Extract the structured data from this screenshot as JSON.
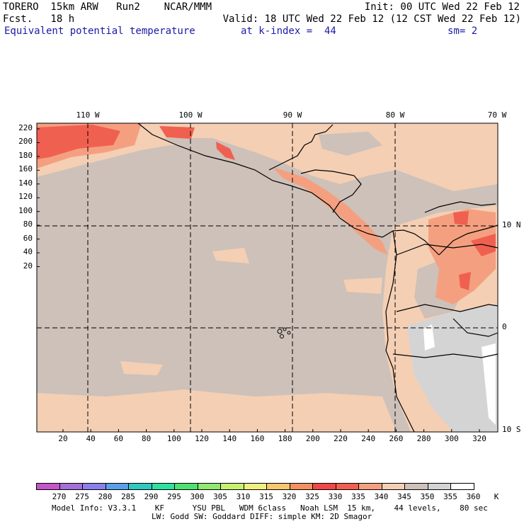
{
  "header": {
    "model_line": "TORERO  15km ARW   Run2    NCAR/MMM",
    "init": "Init: 00 UTC Wed 22 Feb 12",
    "fcst": "Fcst.   18 h",
    "valid": "Valid: 18 UTC Wed 22 Feb 12 (12 CST Wed 22 Feb 12)",
    "field": "Equivalent potential temperature",
    "kindex": "at k-index =  44",
    "smoothing": "sm= 2"
  },
  "map": {
    "top_lon_labels": [
      "110 W",
      "100 W",
      "90 W",
      "80 W",
      "70 W"
    ],
    "right_lat_labels": [
      "10 N",
      "0",
      "10 S"
    ],
    "left_grid_labels": [
      "220",
      "200",
      "180",
      "160",
      "140",
      "120",
      "100",
      "80",
      "60",
      "40",
      "20"
    ],
    "bottom_grid_labels": [
      "20",
      "40",
      "60",
      "80",
      "100",
      "120",
      "140",
      "160",
      "180",
      "200",
      "220",
      "240",
      "260",
      "280",
      "300",
      "320"
    ]
  },
  "colorbar": {
    "labels": [
      "270",
      "275",
      "280",
      "285",
      "290",
      "295",
      "300",
      "305",
      "310",
      "315",
      "320",
      "325",
      "330",
      "335",
      "340",
      "345",
      "350",
      "355",
      "360",
      "K"
    ],
    "colors": [
      "#c455c8",
      "#a470d8",
      "#8a80ea",
      "#5aa0e8",
      "#30c8c0",
      "#30e0a0",
      "#50e070",
      "#90e870",
      "#c8f070",
      "#f0f080",
      "#f8c870",
      "#f49060",
      "#f04848",
      "#f06050",
      "#f4a080",
      "#f4cfb4",
      "#cdc1b9",
      "#d4d4d4",
      "#ffffff"
    ]
  },
  "footer": {
    "line1": "Model Info: V3.3.1    KF      YSU PBL   WDM 6class   Noah LSM  15 km,    44 levels,    80 sec",
    "line2": "LW: Godd SW: Goddard DIFF: simple KM: 2D Smagor"
  }
}
